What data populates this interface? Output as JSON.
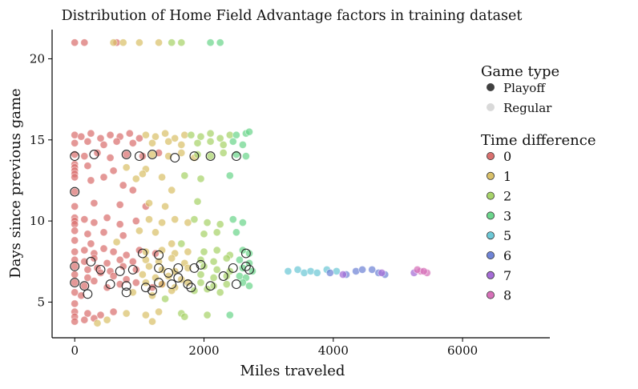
{
  "chart_data": {
    "type": "scatter",
    "title": "Distribution of Home Field Advantage factors in training dataset",
    "xlabel": "Miles traveled",
    "ylabel": "Days since previous game",
    "xlim": [
      -350,
      7350
    ],
    "ylim": [
      2.8,
      21.8
    ],
    "x_ticks": [
      0,
      2000,
      4000,
      6000
    ],
    "x_tick_labels": [
      "0",
      "2000",
      "4000",
      "6000"
    ],
    "y_ticks": [
      5,
      10,
      15,
      20
    ],
    "y_tick_labels": [
      "5",
      "10",
      "15",
      "20"
    ],
    "grid": false,
    "legend_position": "right",
    "legend": {
      "size_title": "Game type",
      "size_entries": [
        {
          "label": "Playoff",
          "color": "#404040"
        },
        {
          "label": "Regular",
          "color": "#d9d9d9"
        }
      ],
      "hue_title": "Time difference",
      "hue_entries": [
        {
          "label": "0",
          "color": "#d9706f"
        },
        {
          "label": "1",
          "color": "#d9c069"
        },
        {
          "label": "2",
          "color": "#a7d36a"
        },
        {
          "label": "3",
          "color": "#6cd68c"
        },
        {
          "label": "5",
          "color": "#6cc8d6"
        },
        {
          "label": "6",
          "color": "#6f84d6"
        },
        {
          "label": "7",
          "color": "#a56cd6"
        },
        {
          "label": "8",
          "color": "#d670b8"
        }
      ]
    },
    "series": [
      {
        "name": "0",
        "color": "#d9706f",
        "points": [
          [
            0,
            21
          ],
          [
            150,
            21
          ],
          [
            650,
            21
          ],
          [
            0,
            15.3
          ],
          [
            100,
            15.2
          ],
          [
            250,
            15.4
          ],
          [
            400,
            15.1
          ],
          [
            550,
            15.3
          ],
          [
            700,
            15.2
          ],
          [
            850,
            15.4
          ],
          [
            1000,
            15.1
          ],
          [
            0,
            14.8
          ],
          [
            200,
            14.9
          ],
          [
            450,
            14.7
          ],
          [
            650,
            14.9
          ],
          [
            900,
            14.8
          ],
          [
            0,
            14.1
          ],
          [
            150,
            14
          ],
          [
            350,
            14.2
          ],
          [
            550,
            13.9
          ],
          [
            800,
            14.1
          ],
          [
            1050,
            14
          ],
          [
            1300,
            14.2
          ],
          [
            0,
            13.5
          ],
          [
            0,
            13.3
          ],
          [
            0,
            13.1
          ],
          [
            0,
            12.9
          ],
          [
            0,
            12.7
          ],
          [
            200,
            13.4
          ],
          [
            600,
            13.1
          ],
          [
            450,
            12.7
          ],
          [
            250,
            12.5
          ],
          [
            0,
            11.8
          ],
          [
            750,
            12.2
          ],
          [
            900,
            11.9
          ],
          [
            0,
            10.9
          ],
          [
            300,
            11.1
          ],
          [
            700,
            11
          ],
          [
            1100,
            10.9
          ],
          [
            0,
            10.2
          ],
          [
            0,
            10
          ],
          [
            0,
            9.8
          ],
          [
            150,
            10.1
          ],
          [
            300,
            9.9
          ],
          [
            500,
            10.2
          ],
          [
            700,
            9.8
          ],
          [
            950,
            10
          ],
          [
            0,
            9.4
          ],
          [
            200,
            9.2
          ],
          [
            450,
            9.3
          ],
          [
            750,
            9.1
          ],
          [
            0,
            8.8
          ],
          [
            250,
            8.6
          ],
          [
            0,
            8.1
          ],
          [
            150,
            8.2
          ],
          [
            300,
            8
          ],
          [
            450,
            8.3
          ],
          [
            600,
            8.1
          ],
          [
            800,
            7.9
          ],
          [
            1000,
            8.2
          ],
          [
            1250,
            8
          ],
          [
            0,
            7.6
          ],
          [
            150,
            7.5
          ],
          [
            300,
            7.7
          ],
          [
            500,
            7.4
          ],
          [
            700,
            7.6
          ],
          [
            900,
            7.5
          ],
          [
            0,
            7.2
          ],
          [
            200,
            7
          ],
          [
            350,
            7.1
          ],
          [
            550,
            6.9
          ],
          [
            750,
            7.2
          ],
          [
            950,
            7
          ],
          [
            0,
            6.7
          ],
          [
            200,
            6.5
          ],
          [
            400,
            6.8
          ],
          [
            600,
            6.6
          ],
          [
            800,
            6.4
          ],
          [
            0,
            6.2
          ],
          [
            150,
            6
          ],
          [
            300,
            6.3
          ],
          [
            500,
            5.9
          ],
          [
            700,
            6.1
          ],
          [
            950,
            6.2
          ],
          [
            1200,
            5.9
          ],
          [
            1350,
            6.1
          ],
          [
            0,
            5.6
          ],
          [
            100,
            5.4
          ],
          [
            0,
            4.9
          ],
          [
            0,
            4.4
          ],
          [
            200,
            4.3
          ],
          [
            400,
            4.2
          ],
          [
            600,
            4.4
          ],
          [
            0,
            4.1
          ],
          [
            150,
            3.9
          ],
          [
            300,
            4
          ],
          [
            0,
            3.8
          ]
        ]
      },
      {
        "name": "1",
        "color": "#d9c069",
        "points": [
          [
            600,
            21
          ],
          [
            750,
            21
          ],
          [
            1000,
            21
          ],
          [
            1300,
            21
          ],
          [
            1100,
            15.3
          ],
          [
            1250,
            15.2
          ],
          [
            1400,
            15.4
          ],
          [
            1550,
            15.1
          ],
          [
            1700,
            15.3
          ],
          [
            1200,
            14.8
          ],
          [
            1450,
            14.9
          ],
          [
            1650,
            14.7
          ],
          [
            1200,
            14.1
          ],
          [
            1450,
            14
          ],
          [
            1650,
            14.2
          ],
          [
            1850,
            13.9
          ],
          [
            800,
            13.3
          ],
          [
            1100,
            13.2
          ],
          [
            1050,
            12.9
          ],
          [
            1350,
            12.7
          ],
          [
            950,
            12.6
          ],
          [
            1500,
            11.9
          ],
          [
            1150,
            11.1
          ],
          [
            1400,
            10.9
          ],
          [
            1150,
            10.1
          ],
          [
            1350,
            9.9
          ],
          [
            1550,
            10.1
          ],
          [
            1750,
            9.9
          ],
          [
            1000,
            9.4
          ],
          [
            1250,
            9.3
          ],
          [
            650,
            8.7
          ],
          [
            1500,
            8.6
          ],
          [
            1100,
            8.1
          ],
          [
            1350,
            8.2
          ],
          [
            1550,
            8
          ],
          [
            1750,
            8.1
          ],
          [
            1100,
            7.6
          ],
          [
            1300,
            7.5
          ],
          [
            1500,
            7.7
          ],
          [
            1700,
            7.4
          ],
          [
            1150,
            7.2
          ],
          [
            1350,
            7
          ],
          [
            1550,
            6.9
          ],
          [
            1750,
            7.1
          ],
          [
            1050,
            6.7
          ],
          [
            1250,
            6.5
          ],
          [
            1450,
            6.6
          ],
          [
            1650,
            6.4
          ],
          [
            1100,
            6.2
          ],
          [
            1350,
            6.1
          ],
          [
            1550,
            5.9
          ],
          [
            1750,
            6.2
          ],
          [
            900,
            5.6
          ],
          [
            1200,
            5.4
          ],
          [
            1500,
            5.7
          ],
          [
            800,
            4.3
          ],
          [
            1100,
            4.2
          ],
          [
            1300,
            4.4
          ],
          [
            500,
            3.9
          ],
          [
            1200,
            3.8
          ],
          [
            350,
            3.7
          ]
        ]
      },
      {
        "name": "2",
        "color": "#a7d36a",
        "points": [
          [
            1500,
            21
          ],
          [
            1650,
            21
          ],
          [
            1800,
            15.3
          ],
          [
            1950,
            15.2
          ],
          [
            2100,
            15.4
          ],
          [
            2250,
            15.1
          ],
          [
            2400,
            15.3
          ],
          [
            1900,
            14.8
          ],
          [
            2100,
            14.9
          ],
          [
            2300,
            14.7
          ],
          [
            1900,
            14.1
          ],
          [
            2100,
            14
          ],
          [
            2300,
            14.2
          ],
          [
            1700,
            12.8
          ],
          [
            1950,
            12.6
          ],
          [
            1900,
            11.2
          ],
          [
            1850,
            10.1
          ],
          [
            2050,
            9.9
          ],
          [
            2250,
            9.8
          ],
          [
            2000,
            9.2
          ],
          [
            2200,
            9.3
          ],
          [
            1650,
            8.6
          ],
          [
            2000,
            8.1
          ],
          [
            2200,
            8.2
          ],
          [
            2400,
            7.9
          ],
          [
            1950,
            7.6
          ],
          [
            2150,
            7.5
          ],
          [
            2350,
            7.7
          ],
          [
            2000,
            7.2
          ],
          [
            2200,
            7
          ],
          [
            2400,
            6.9
          ],
          [
            1950,
            6.7
          ],
          [
            2150,
            6.5
          ],
          [
            2350,
            6.6
          ],
          [
            1950,
            6.2
          ],
          [
            2150,
            6
          ],
          [
            2350,
            6.1
          ],
          [
            1850,
            5.7
          ],
          [
            2050,
            5.8
          ],
          [
            2250,
            5.6
          ],
          [
            1650,
            4.3
          ],
          [
            2050,
            4.2
          ],
          [
            1700,
            4.1
          ],
          [
            1400,
            5.2
          ]
        ]
      },
      {
        "name": "3",
        "color": "#6cd68c",
        "points": [
          [
            2100,
            21
          ],
          [
            2250,
            21
          ],
          [
            2500,
            15.3
          ],
          [
            2650,
            15.4
          ],
          [
            2700,
            15.5
          ],
          [
            2450,
            14.9
          ],
          [
            2600,
            14.7
          ],
          [
            2500,
            14.1
          ],
          [
            2650,
            14
          ],
          [
            2400,
            12.8
          ],
          [
            2450,
            10.1
          ],
          [
            2600,
            9.9
          ],
          [
            2500,
            9.3
          ],
          [
            2600,
            8.2
          ],
          [
            2700,
            8
          ],
          [
            2550,
            7.6
          ],
          [
            2700,
            7.4
          ],
          [
            2600,
            7.1
          ],
          [
            2750,
            6.9
          ],
          [
            2550,
            6.6
          ],
          [
            2650,
            6.5
          ],
          [
            2600,
            6.2
          ],
          [
            2700,
            6
          ],
          [
            2400,
            4.2
          ]
        ]
      },
      {
        "name": "5",
        "color": "#6cc8d6",
        "points": [
          [
            3300,
            6.9
          ],
          [
            3450,
            7
          ],
          [
            3550,
            6.8
          ],
          [
            3650,
            6.9
          ],
          [
            3750,
            6.8
          ],
          [
            3900,
            7
          ],
          [
            4050,
            6.9
          ]
        ]
      },
      {
        "name": "6",
        "color": "#6f84d6",
        "points": [
          [
            3950,
            6.8
          ],
          [
            4200,
            6.7
          ],
          [
            4350,
            6.9
          ],
          [
            4450,
            7
          ],
          [
            4600,
            7
          ],
          [
            4700,
            6.8
          ],
          [
            4800,
            6.7
          ]
        ]
      },
      {
        "name": "7",
        "color": "#a56cd6",
        "points": [
          [
            4150,
            6.7
          ],
          [
            4750,
            6.8
          ],
          [
            5250,
            6.8
          ]
        ]
      },
      {
        "name": "8",
        "color": "#d670b8",
        "points": [
          [
            5350,
            6.9
          ],
          [
            5450,
            6.8
          ],
          [
            5300,
            7
          ],
          [
            5400,
            6.9
          ]
        ]
      }
    ],
    "playoff_points": [
      [
        0,
        14
      ],
      [
        300,
        14.1
      ],
      [
        800,
        14.1
      ],
      [
        1000,
        14
      ],
      [
        1200,
        14.1
      ],
      [
        1850,
        14
      ],
      [
        2100,
        14
      ],
      [
        1550,
        13.9
      ],
      [
        2500,
        14
      ],
      [
        0,
        11.8
      ],
      [
        0,
        7.2
      ],
      [
        250,
        7.5
      ],
      [
        400,
        7
      ],
      [
        700,
        6.9
      ],
      [
        900,
        7
      ],
      [
        1300,
        7.1
      ],
      [
        1600,
        7.1
      ],
      [
        1850,
        7.1
      ],
      [
        1950,
        7.3
      ],
      [
        2450,
        7.1
      ],
      [
        2700,
        7
      ],
      [
        0,
        6.2
      ],
      [
        150,
        6
      ],
      [
        550,
        6.1
      ],
      [
        800,
        6
      ],
      [
        1100,
        5.9
      ],
      [
        1300,
        6.2
      ],
      [
        1500,
        6.1
      ],
      [
        1750,
        6.1
      ],
      [
        1800,
        5.9
      ],
      [
        2100,
        6
      ],
      [
        2500,
        6.1
      ],
      [
        200,
        5.5
      ],
      [
        800,
        5.6
      ],
      [
        1200,
        5.7
      ],
      [
        1600,
        6.5
      ],
      [
        2300,
        6.6
      ],
      [
        1450,
        6.8
      ],
      [
        2650,
        7.2
      ],
      [
        1050,
        8
      ],
      [
        1300,
        7.9
      ],
      [
        2650,
        8
      ]
    ]
  }
}
